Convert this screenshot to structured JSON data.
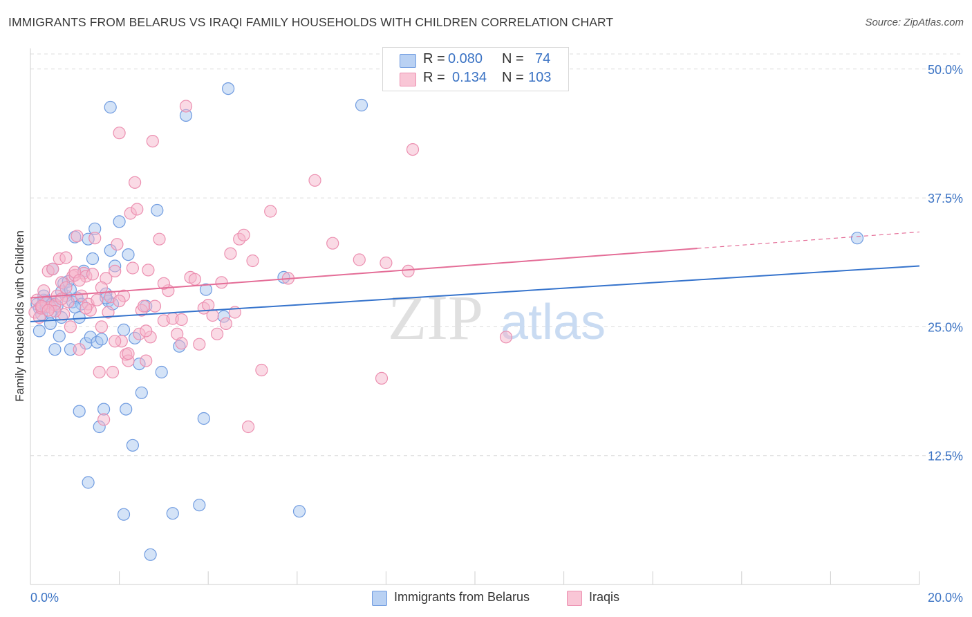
{
  "title": "IMMIGRANTS FROM BELARUS VS IRAQI FAMILY HOUSEHOLDS WITH CHILDREN CORRELATION CHART",
  "source": "Source: ZipAtlas.com",
  "watermark": {
    "zip": "ZIP",
    "atlas": "atlas"
  },
  "legend": {
    "r_label": "R =",
    "n_label": "N =",
    "series": [
      {
        "r": "0.080",
        "n": "74"
      },
      {
        "r": "0.134",
        "n": "103"
      }
    ]
  },
  "bottom_legend": [
    "Immigrants from Belarus",
    "Iraqis"
  ],
  "colors": {
    "blue_fill": "#a9c7ef",
    "blue_stroke": "#6f9be0",
    "blue_line": "#3573cc",
    "pink_fill": "#f6b6cb",
    "pink_stroke": "#ec8fb0",
    "pink_line": "#e46d97",
    "axis_text": "#3b73c4",
    "grid": "#dcdcdc"
  },
  "chart_data": {
    "type": "scatter",
    "title": "IMMIGRANTS FROM BELARUS VS IRAQI FAMILY HOUSEHOLDS WITH CHILDREN CORRELATION CHART",
    "xlabel": "",
    "ylabel": "Family Households with Children",
    "xlim": [
      0,
      20
    ],
    "ylim": [
      0,
      52
    ],
    "x_tick_labels": [
      "0.0%",
      "20.0%"
    ],
    "y_ticks": [
      12.5,
      25.0,
      37.5,
      50.0
    ],
    "y_tick_labels": [
      "12.5%",
      "25.0%",
      "37.5%",
      "50.0%"
    ],
    "grid": true,
    "legend_position": "top-center",
    "series": [
      {
        "name": "Immigrants from Belarus",
        "r": 0.08,
        "n": 74,
        "trend": {
          "x": [
            0,
            20
          ],
          "y": [
            25.5,
            30.9
          ],
          "dashed_from": null
        },
        "points": [
          [
            0.15,
            27.2
          ],
          [
            0.2,
            26.8
          ],
          [
            0.25,
            26.2
          ],
          [
            0.3,
            27.6
          ],
          [
            0.35,
            26.9
          ],
          [
            0.4,
            27.3
          ],
          [
            0.45,
            26.4
          ],
          [
            0.5,
            27.4
          ],
          [
            0.2,
            24.6
          ],
          [
            0.45,
            25.3
          ],
          [
            0.5,
            30.6
          ],
          [
            0.55,
            22.8
          ],
          [
            0.6,
            27.0
          ],
          [
            0.65,
            24.1
          ],
          [
            0.7,
            25.9
          ],
          [
            0.75,
            29.2
          ],
          [
            0.8,
            28.0
          ],
          [
            0.85,
            29.4
          ],
          [
            0.9,
            22.8
          ],
          [
            0.95,
            27.4
          ],
          [
            1.0,
            33.7
          ],
          [
            1.05,
            27.8
          ],
          [
            1.1,
            25.9
          ],
          [
            1.15,
            27.2
          ],
          [
            1.1,
            16.8
          ],
          [
            1.25,
            23.4
          ],
          [
            1.3,
            9.9
          ],
          [
            1.35,
            24.0
          ],
          [
            1.4,
            31.6
          ],
          [
            1.45,
            34.5
          ],
          [
            1.5,
            23.5
          ],
          [
            1.55,
            15.3
          ],
          [
            1.6,
            23.8
          ],
          [
            1.65,
            17.0
          ],
          [
            1.7,
            28.2
          ],
          [
            1.75,
            27.5
          ],
          [
            1.8,
            32.4
          ],
          [
            1.85,
            27.2
          ],
          [
            1.9,
            30.9
          ],
          [
            1.8,
            46.3
          ],
          [
            2.0,
            35.2
          ],
          [
            2.1,
            6.8
          ],
          [
            2.1,
            24.7
          ],
          [
            2.15,
            17.0
          ],
          [
            2.2,
            32.0
          ],
          [
            2.3,
            13.5
          ],
          [
            2.35,
            23.9
          ],
          [
            2.45,
            21.4
          ],
          [
            2.5,
            18.6
          ],
          [
            2.6,
            27.0
          ],
          [
            2.7,
            2.9
          ],
          [
            2.85,
            36.3
          ],
          [
            2.95,
            20.6
          ],
          [
            3.2,
            6.9
          ],
          [
            3.35,
            23.1
          ],
          [
            3.5,
            45.5
          ],
          [
            3.8,
            7.7
          ],
          [
            3.9,
            16.1
          ],
          [
            3.95,
            28.6
          ],
          [
            4.35,
            26.0
          ],
          [
            4.45,
            48.1
          ],
          [
            5.7,
            29.8
          ],
          [
            6.05,
            7.1
          ],
          [
            7.45,
            46.5
          ],
          [
            18.6,
            33.6
          ],
          [
            0.55,
            27.2
          ],
          [
            0.7,
            28.4
          ],
          [
            1.0,
            26.9
          ],
          [
            0.35,
            27.5
          ],
          [
            0.3,
            28.0
          ],
          [
            1.3,
            33.5
          ],
          [
            0.9,
            28.6
          ],
          [
            1.2,
            30.4
          ],
          [
            1.7,
            27.8
          ]
        ]
      },
      {
        "name": "Iraqis",
        "r": 0.134,
        "n": 103,
        "trend": {
          "x": [
            0,
            20
          ],
          "y": [
            27.8,
            34.2
          ],
          "dashed_from": 15.0
        },
        "points": [
          [
            0.1,
            26.4
          ],
          [
            0.15,
            27.6
          ],
          [
            0.2,
            25.9
          ],
          [
            0.25,
            26.8
          ],
          [
            0.3,
            28.5
          ],
          [
            0.35,
            27.3
          ],
          [
            0.4,
            30.4
          ],
          [
            0.45,
            26.9
          ],
          [
            0.5,
            30.6
          ],
          [
            0.55,
            27.1
          ],
          [
            0.6,
            28.0
          ],
          [
            0.65,
            31.6
          ],
          [
            0.7,
            29.3
          ],
          [
            0.75,
            26.2
          ],
          [
            0.8,
            28.8
          ],
          [
            0.85,
            27.4
          ],
          [
            0.9,
            25.0
          ],
          [
            0.95,
            29.9
          ],
          [
            1.0,
            30.0
          ],
          [
            1.05,
            33.8
          ],
          [
            1.1,
            22.8
          ],
          [
            1.15,
            28.0
          ],
          [
            1.2,
            30.2
          ],
          [
            1.25,
            29.9
          ],
          [
            1.3,
            27.2
          ],
          [
            1.35,
            26.6
          ],
          [
            1.4,
            30.1
          ],
          [
            1.45,
            33.6
          ],
          [
            1.5,
            27.6
          ],
          [
            1.55,
            20.6
          ],
          [
            1.6,
            25.0
          ],
          [
            1.65,
            16.0
          ],
          [
            1.7,
            29.7
          ],
          [
            1.75,
            26.4
          ],
          [
            1.8,
            27.9
          ],
          [
            1.85,
            20.6
          ],
          [
            1.9,
            30.4
          ],
          [
            1.95,
            33.0
          ],
          [
            2.0,
            43.8
          ],
          [
            2.05,
            23.6
          ],
          [
            2.1,
            28.0
          ],
          [
            2.15,
            22.3
          ],
          [
            2.2,
            21.7
          ],
          [
            2.25,
            36.0
          ],
          [
            2.3,
            30.7
          ],
          [
            2.35,
            39.0
          ],
          [
            2.4,
            36.4
          ],
          [
            2.45,
            24.3
          ],
          [
            2.5,
            26.6
          ],
          [
            2.55,
            27.0
          ],
          [
            2.6,
            21.7
          ],
          [
            2.65,
            30.5
          ],
          [
            2.7,
            24.0
          ],
          [
            2.75,
            43.0
          ],
          [
            2.8,
            27.0
          ],
          [
            2.9,
            33.5
          ],
          [
            3.0,
            25.6
          ],
          [
            3.1,
            28.5
          ],
          [
            3.2,
            25.8
          ],
          [
            3.3,
            24.3
          ],
          [
            3.4,
            23.4
          ],
          [
            3.5,
            46.4
          ],
          [
            3.6,
            29.8
          ],
          [
            3.7,
            29.6
          ],
          [
            3.8,
            23.3
          ],
          [
            3.9,
            26.8
          ],
          [
            4.0,
            27.1
          ],
          [
            4.1,
            26.1
          ],
          [
            4.2,
            24.3
          ],
          [
            4.3,
            29.3
          ],
          [
            4.4,
            25.3
          ],
          [
            4.5,
            32.1
          ],
          [
            4.6,
            26.4
          ],
          [
            4.7,
            33.5
          ],
          [
            4.8,
            33.9
          ],
          [
            4.9,
            15.3
          ],
          [
            5.0,
            31.4
          ],
          [
            5.2,
            20.8
          ],
          [
            5.4,
            36.2
          ],
          [
            5.8,
            29.7
          ],
          [
            6.4,
            39.2
          ],
          [
            6.8,
            33.1
          ],
          [
            7.4,
            31.5
          ],
          [
            7.9,
            20.0
          ],
          [
            8.0,
            31.2
          ],
          [
            8.5,
            30.4
          ],
          [
            8.6,
            42.2
          ],
          [
            10.7,
            24.0
          ],
          [
            0.25,
            27.0
          ],
          [
            0.55,
            26.5
          ],
          [
            0.8,
            31.7
          ],
          [
            1.0,
            30.3
          ],
          [
            1.25,
            26.8
          ],
          [
            1.6,
            28.8
          ],
          [
            1.9,
            23.6
          ],
          [
            2.2,
            22.4
          ],
          [
            2.6,
            24.6
          ],
          [
            3.0,
            29.2
          ],
          [
            3.4,
            25.7
          ],
          [
            0.4,
            26.6
          ],
          [
            0.7,
            27.7
          ],
          [
            1.1,
            29.5
          ],
          [
            2.0,
            27.5
          ]
        ]
      }
    ]
  }
}
